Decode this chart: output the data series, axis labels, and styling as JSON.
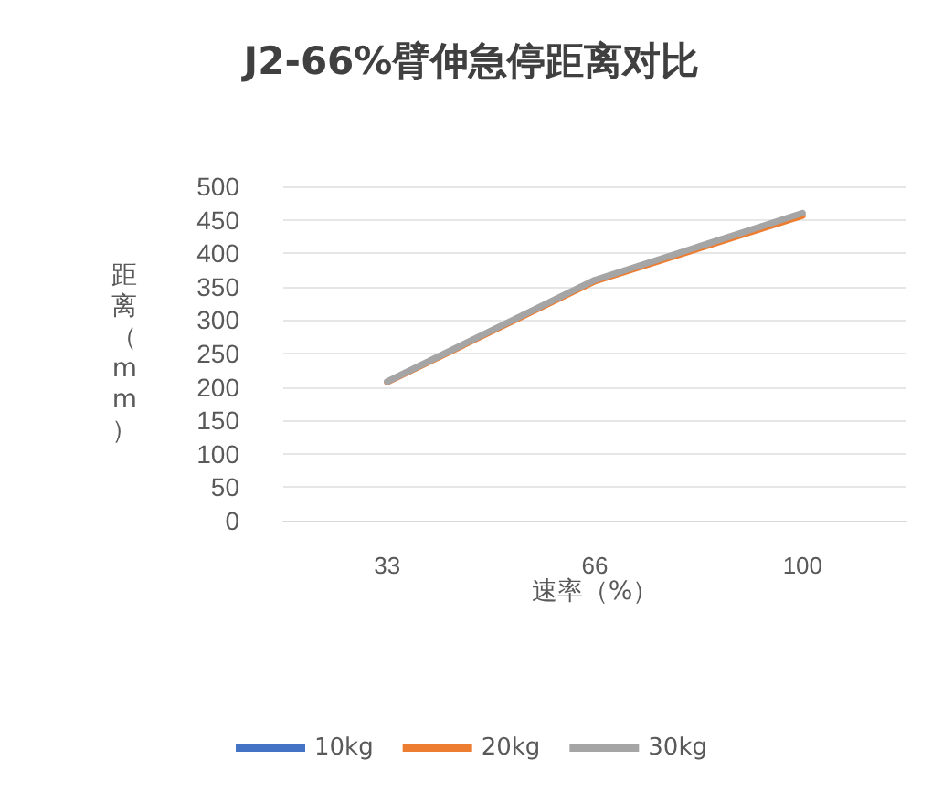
{
  "chart_data": {
    "type": "line",
    "title": "J2-66%臂伸急停距离对比",
    "xlabel": "速率（%）",
    "ylabel": "距离（mm）",
    "categories": [
      "33",
      "66",
      "100"
    ],
    "series": [
      {
        "name": "10kg",
        "color": "#4472c4",
        "values": [
          null,
          null,
          null
        ]
      },
      {
        "name": "20kg",
        "color": "#ed7d31",
        "values": [
          207,
          358,
          456
        ]
      },
      {
        "name": "30kg",
        "color": "#a5a5a5",
        "values": [
          208,
          360,
          460
        ]
      }
    ],
    "ylim": [
      0,
      500
    ],
    "yticks": [
      0,
      50,
      100,
      150,
      200,
      250,
      300,
      350,
      400,
      450,
      500
    ],
    "grid": "y",
    "legend": "bottom",
    "marker": "none",
    "line_style": "solid"
  }
}
